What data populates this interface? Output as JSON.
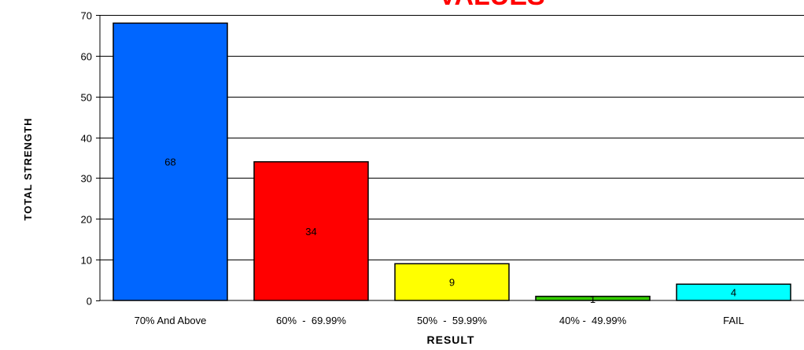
{
  "chart_data": {
    "type": "bar",
    "title": "VALUES",
    "title_color": "#ff0000",
    "xlabel": "RESULT",
    "ylabel": "TOTAL STRENGTH",
    "categories": [
      "70% And Above",
      "60%  -  69.99%",
      "50%  -  59.99%",
      "40% -  49.99%",
      "FAIL"
    ],
    "values": [
      68,
      34,
      9,
      1,
      4
    ],
    "data_labels": [
      "68",
      "34",
      "9",
      "1",
      "4"
    ],
    "colors": [
      "#0066ff",
      "#ff0000",
      "#ffff00",
      "#33cc00",
      "#00ffff"
    ],
    "ylim": [
      0,
      70
    ],
    "yticks": [
      0,
      10,
      20,
      30,
      40,
      50,
      60,
      70
    ],
    "ytick_labels": [
      "0",
      "10",
      "20",
      "30",
      "40",
      "50",
      "60",
      "70"
    ],
    "grid": true,
    "legend": "none"
  }
}
